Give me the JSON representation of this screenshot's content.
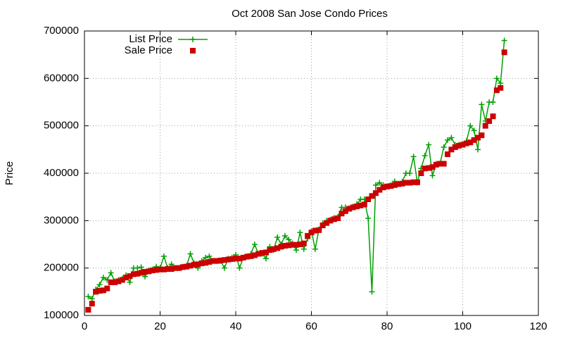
{
  "chart_data": {
    "type": "line",
    "title": "Oct 2008 San Jose Condo Prices",
    "y_label": "Price",
    "x": [
      1,
      2,
      3,
      4,
      5,
      6,
      7,
      8,
      9,
      10,
      11,
      12,
      13,
      14,
      15,
      16,
      17,
      18,
      19,
      20,
      21,
      22,
      23,
      24,
      25,
      26,
      27,
      28,
      29,
      30,
      31,
      32,
      33,
      34,
      35,
      36,
      37,
      38,
      39,
      40,
      41,
      42,
      43,
      44,
      45,
      46,
      47,
      48,
      49,
      50,
      51,
      52,
      53,
      54,
      55,
      56,
      57,
      58,
      59,
      60,
      61,
      62,
      63,
      64,
      65,
      66,
      67,
      68,
      69,
      70,
      71,
      72,
      73,
      74,
      75,
      76,
      77,
      78,
      79,
      80,
      81,
      82,
      83,
      84,
      85,
      86,
      87,
      88,
      89,
      90,
      91,
      92,
      93,
      94,
      95,
      96,
      97,
      98,
      99,
      100,
      101,
      102,
      103,
      104,
      105,
      106,
      107,
      108,
      109,
      110,
      111
    ],
    "series": [
      {
        "name": "List Price",
        "color": "#00a000",
        "style": "linespoints",
        "values": [
          140000,
          135000,
          155000,
          165000,
          180000,
          175000,
          190000,
          172000,
          175000,
          178000,
          185000,
          170000,
          200000,
          200000,
          202000,
          182000,
          195000,
          197000,
          203000,
          200000,
          225000,
          200000,
          208000,
          200000,
          200000,
          203000,
          205000,
          230000,
          210000,
          200000,
          215000,
          222000,
          225000,
          215000,
          215000,
          215000,
          200000,
          220000,
          222000,
          228000,
          200000,
          222000,
          225000,
          230000,
          250000,
          230000,
          230000,
          220000,
          245000,
          238000,
          265000,
          250000,
          268000,
          260000,
          252000,
          238000,
          275000,
          240000,
          262000,
          278000,
          240000,
          282000,
          295000,
          300000,
          302000,
          306000,
          308000,
          328000,
          328000,
          326000,
          330000,
          335000,
          345000,
          345000,
          305000,
          150000,
          375000,
          380000,
          375000,
          372000,
          375000,
          383000,
          378000,
          382000,
          400000,
          400000,
          435000,
          380000,
          410000,
          437000,
          460000,
          395000,
          420000,
          420000,
          455000,
          470000,
          475000,
          460000,
          460000,
          462000,
          468000,
          500000,
          490000,
          450000,
          545000,
          510000,
          550000,
          550000,
          600000,
          590000,
          680000
        ]
      },
      {
        "name": "Sale Price",
        "color": "#cc0000",
        "style": "points",
        "values": [
          112000,
          125000,
          150000,
          152000,
          153000,
          157000,
          170000,
          170000,
          172000,
          175000,
          180000,
          183000,
          187000,
          188000,
          190000,
          192000,
          193000,
          195000,
          196000,
          197000,
          197000,
          198000,
          198000,
          200000,
          200000,
          202000,
          203000,
          205000,
          207000,
          208000,
          210000,
          211000,
          213000,
          215000,
          215000,
          216000,
          217000,
          218000,
          219000,
          220000,
          220000,
          222000,
          224000,
          225000,
          227000,
          230000,
          232000,
          233000,
          238000,
          240000,
          242000,
          245000,
          247000,
          248000,
          249000,
          249000,
          250000,
          252000,
          268000,
          275000,
          279000,
          280000,
          290000,
          295000,
          300000,
          303000,
          305000,
          315000,
          320000,
          325000,
          328000,
          330000,
          332000,
          334000,
          345000,
          352000,
          358000,
          365000,
          370000,
          372000,
          373000,
          375000,
          377000,
          378000,
          380000,
          380000,
          381000,
          381000,
          400000,
          410000,
          411000,
          413000,
          418000,
          420000,
          420000,
          440000,
          450000,
          455000,
          458000,
          460000,
          463000,
          465000,
          470000,
          475000,
          480000,
          500000,
          510000,
          520000,
          575000,
          580000,
          655000
        ]
      }
    ],
    "xlim": [
      0,
      120
    ],
    "xticks": [
      0,
      20,
      40,
      60,
      80,
      100,
      120
    ],
    "ylim": [
      100000,
      700000
    ],
    "yticks": [
      100000,
      200000,
      300000,
      400000,
      500000,
      600000,
      700000
    ],
    "grid": true,
    "legend": "top-left"
  }
}
